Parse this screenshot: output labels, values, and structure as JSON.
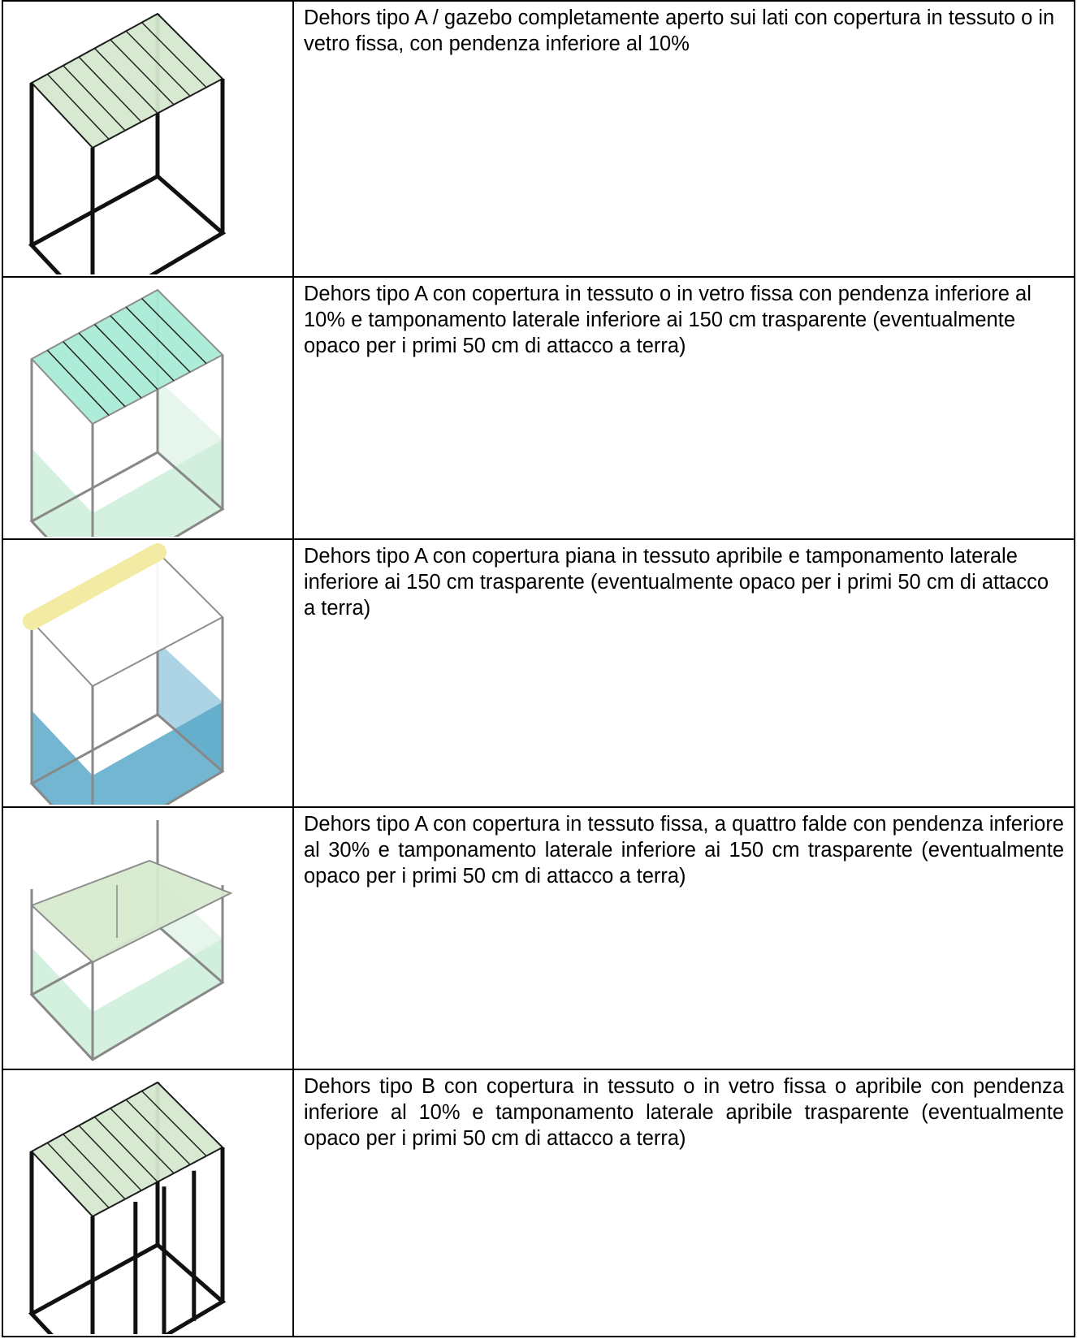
{
  "table": {
    "rows": [
      {
        "description": "Dehors tipo A / gazebo completamente aperto sui lati con copertura in tessuto o in vetro fissa, con pendenza inferiore al 10%"
      },
      {
        "description": "Dehors tipo A con copertura in tessuto o in vetro fissa con pendenza inferiore al 10% e tamponamento laterale inferiore ai 150 cm trasparente (eventualmente opaco per i primi 50 cm di attacco a terra)"
      },
      {
        "description": "Dehors tipo A con copertura piana in tessuto apribile e tamponamento laterale inferiore ai 150 cm trasparente (eventualmente opaco per i primi 50 cm di attacco a terra)"
      },
      {
        "description": "Dehors tipo A con copertura in tessuto fissa, a quattro falde con pendenza inferiore al 30% e tamponamento laterale inferiore ai 150 cm trasparente (eventualmente opaco per i primi 50 cm di attacco a terra)"
      },
      {
        "description": "Dehors tipo B con copertura in tessuto o in vetro fissa o apribile con pendenza inferiore al 10% e tamponamento laterale apribile trasparente (eventualmente opaco per i primi 50 cm di attacco a terra)"
      }
    ]
  }
}
